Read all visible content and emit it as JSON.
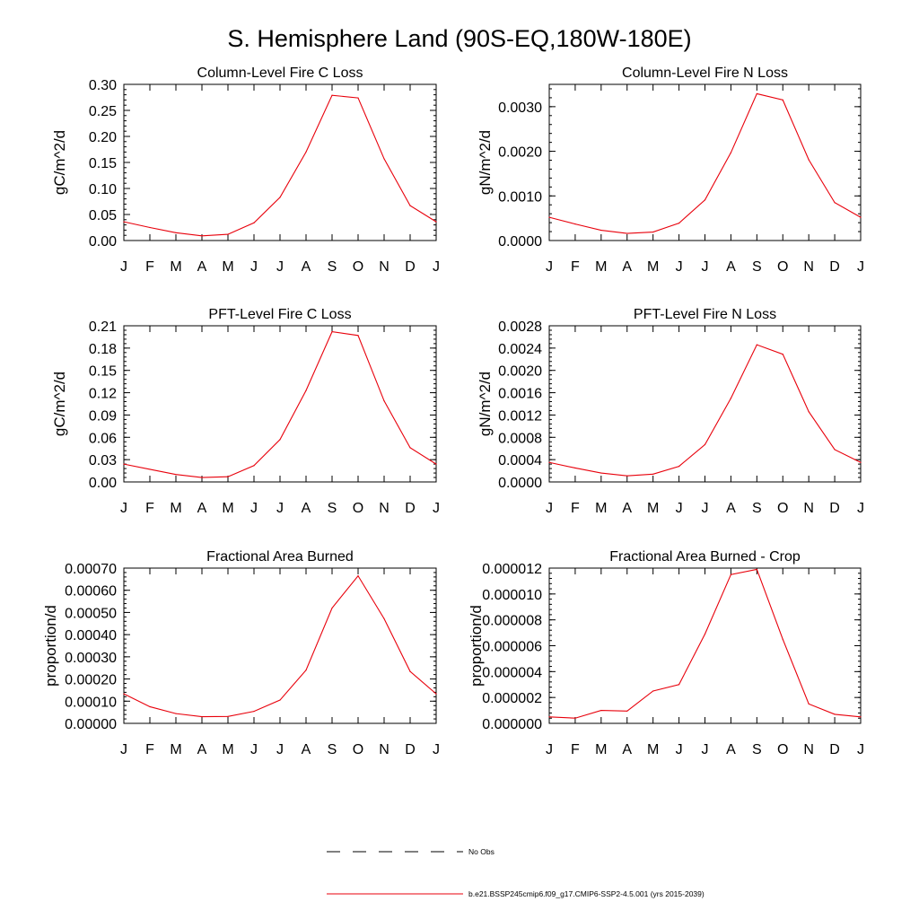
{
  "figure": {
    "title": "S. Hemisphere Land (90S-EQ,180W-180E)",
    "series_color": "#e8000b",
    "axis_color": "#000000"
  },
  "legend": {
    "items": [
      {
        "label": "No Obs",
        "style": "dashed",
        "color": "#000000"
      },
      {
        "label": "b.e21.BSSP245cmip6.f09_g17.CMIP6-SSP2-4.5.001 (yrs 2015-2039)",
        "style": "solid",
        "color": "#e8000b"
      }
    ]
  },
  "chart_data": [
    {
      "type": "line",
      "title": "Column-Level Fire C Loss",
      "xlabel": "",
      "ylabel": "gC/m^2/d",
      "categories": [
        "J",
        "F",
        "M",
        "A",
        "M",
        "J",
        "J",
        "A",
        "S",
        "O",
        "N",
        "D",
        "J"
      ],
      "ylim": [
        0,
        0.3
      ],
      "yticks": [
        0,
        0.05,
        0.1,
        0.15,
        0.2,
        0.25,
        0.3
      ],
      "ytick_labels": [
        "0.00",
        "0.05",
        "0.10",
        "0.15",
        "0.20",
        "0.25",
        "0.30"
      ],
      "series": [
        {
          "name": "b.e21.BSSP245cmip6.f09_g17.CMIP6-SSP2-4.5.001 (yrs 2015-2039)",
          "values": [
            0.036,
            0.025,
            0.015,
            0.009,
            0.012,
            0.034,
            0.083,
            0.17,
            0.279,
            0.274,
            0.157,
            0.067,
            0.036
          ]
        }
      ]
    },
    {
      "type": "line",
      "title": "Column-Level Fire N Loss",
      "xlabel": "",
      "ylabel": "gN/m^2/d",
      "categories": [
        "J",
        "F",
        "M",
        "A",
        "M",
        "J",
        "J",
        "A",
        "S",
        "O",
        "N",
        "D",
        "J"
      ],
      "ylim": [
        0,
        0.0035
      ],
      "yticks": [
        0,
        0.001,
        0.002,
        0.003
      ],
      "ytick_labels": [
        "0.0000",
        "0.0010",
        "0.0020",
        "0.0030"
      ],
      "series": [
        {
          "name": "b.e21.BSSP245cmip6.f09_g17.CMIP6-SSP2-4.5.001 (yrs 2015-2039)",
          "values": [
            0.00052,
            0.00037,
            0.00023,
            0.00016,
            0.00019,
            0.00039,
            0.00091,
            0.00197,
            0.00329,
            0.00315,
            0.00181,
            0.00085,
            0.00052
          ]
        }
      ]
    },
    {
      "type": "line",
      "title": "PFT-Level Fire C Loss",
      "xlabel": "",
      "ylabel": "gC/m^2/d",
      "categories": [
        "J",
        "F",
        "M",
        "A",
        "M",
        "J",
        "J",
        "A",
        "S",
        "O",
        "N",
        "D",
        "J"
      ],
      "ylim": [
        0,
        0.21
      ],
      "yticks": [
        0,
        0.03,
        0.06,
        0.09,
        0.12,
        0.15,
        0.18,
        0.21
      ],
      "ytick_labels": [
        "0.00",
        "0.03",
        "0.06",
        "0.09",
        "0.12",
        "0.15",
        "0.18",
        "0.21"
      ],
      "series": [
        {
          "name": "b.e21.BSSP245cmip6.f09_g17.CMIP6-SSP2-4.5.001 (yrs 2015-2039)",
          "values": [
            0.024,
            0.017,
            0.01,
            0.006,
            0.007,
            0.022,
            0.057,
            0.123,
            0.202,
            0.197,
            0.109,
            0.046,
            0.024
          ]
        }
      ]
    },
    {
      "type": "line",
      "title": "PFT-Level Fire N Loss",
      "xlabel": "",
      "ylabel": "gN/m^2/d",
      "categories": [
        "J",
        "F",
        "M",
        "A",
        "M",
        "J",
        "J",
        "A",
        "S",
        "O",
        "N",
        "D",
        "J"
      ],
      "ylim": [
        0,
        0.0028
      ],
      "yticks": [
        0,
        0.0004,
        0.0008,
        0.0012,
        0.0016,
        0.002,
        0.0024,
        0.0028
      ],
      "ytick_labels": [
        "0.0000",
        "0.0004",
        "0.0008",
        "0.0012",
        "0.0016",
        "0.0020",
        "0.0024",
        "0.0028"
      ],
      "series": [
        {
          "name": "b.e21.BSSP245cmip6.f09_g17.CMIP6-SSP2-4.5.001 (yrs 2015-2039)",
          "values": [
            0.00035,
            0.00025,
            0.00016,
            0.00011,
            0.00014,
            0.00028,
            0.00067,
            0.0015,
            0.00246,
            0.00229,
            0.00126,
            0.00058,
            0.00035
          ]
        }
      ]
    },
    {
      "type": "line",
      "title": "Fractional Area Burned",
      "xlabel": "",
      "ylabel": "proportion/d",
      "categories": [
        "J",
        "F",
        "M",
        "A",
        "M",
        "J",
        "J",
        "A",
        "S",
        "O",
        "N",
        "D",
        "J"
      ],
      "ylim": [
        0,
        0.0007
      ],
      "yticks": [
        0,
        0.0001,
        0.0002,
        0.0003,
        0.0004,
        0.0005,
        0.0006,
        0.0007
      ],
      "ytick_labels": [
        "0.00000",
        "0.00010",
        "0.00020",
        "0.00030",
        "0.00040",
        "0.00050",
        "0.00060",
        "0.00070"
      ],
      "series": [
        {
          "name": "b.e21.BSSP245cmip6.f09_g17.CMIP6-SSP2-4.5.001 (yrs 2015-2039)",
          "values": [
            0.000133,
            7.5e-05,
            4.4e-05,
            3e-05,
            3.1e-05,
            5.4e-05,
            0.000105,
            0.00024,
            0.00052,
            0.000665,
            0.000472,
            0.000234,
            0.000133
          ]
        }
      ]
    },
    {
      "type": "line",
      "title": "Fractional Area Burned - Crop",
      "xlabel": "",
      "ylabel": "proportion/d",
      "categories": [
        "J",
        "F",
        "M",
        "A",
        "M",
        "J",
        "J",
        "A",
        "S",
        "O",
        "N",
        "D",
        "J"
      ],
      "ylim": [
        0,
        1.2e-05
      ],
      "yticks": [
        0,
        2e-06,
        4e-06,
        6e-06,
        8e-06,
        1e-05,
        1.2e-05
      ],
      "ytick_labels": [
        "0.000000",
        "0.000002",
        "0.000004",
        "0.000006",
        "0.000008",
        "0.000010",
        "0.000012"
      ],
      "series": [
        {
          "name": "b.e21.BSSP245cmip6.f09_g17.CMIP6-SSP2-4.5.001 (yrs 2015-2039)",
          "values": [
            5e-07,
            4e-07,
            1e-06,
            9.5e-07,
            2.5e-06,
            3e-06,
            6.9e-06,
            1.15e-05,
            1.19e-05,
            6.5e-06,
            1.5e-06,
            7e-07,
            5e-07
          ]
        }
      ]
    }
  ]
}
